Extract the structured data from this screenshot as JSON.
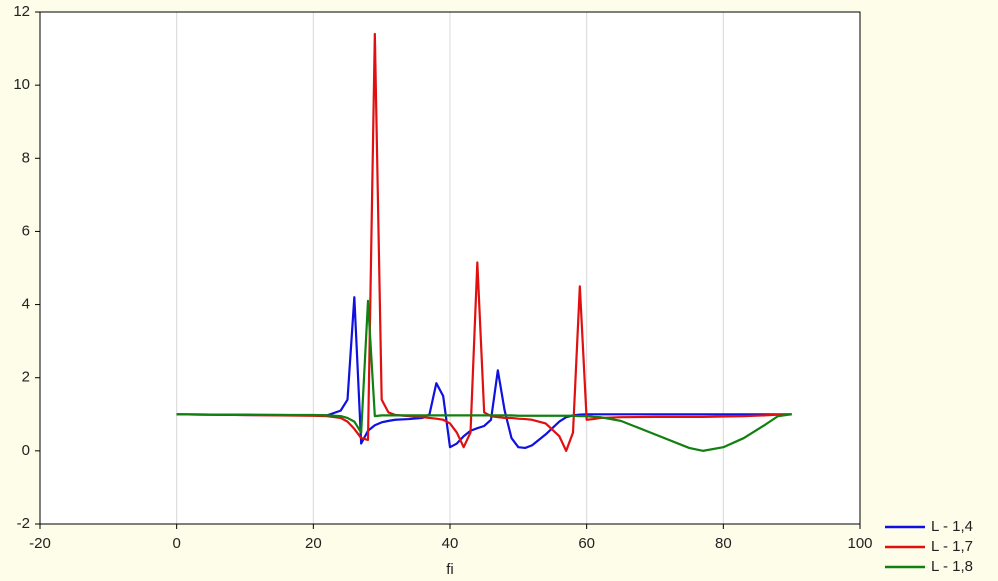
{
  "chart_data": {
    "type": "line",
    "x_label": "fi",
    "x": [
      0,
      5,
      10,
      15,
      20,
      22,
      24,
      25,
      26,
      27,
      28,
      29,
      30,
      31,
      32,
      34,
      36,
      37,
      38,
      39,
      40,
      41,
      42,
      43,
      44,
      45,
      46,
      47,
      48,
      49,
      50,
      51,
      52,
      54,
      56,
      57,
      58,
      59,
      60,
      61,
      62,
      65,
      70,
      75,
      77,
      80,
      83,
      86,
      88,
      90
    ],
    "series": [
      {
        "name": "L - 1,4",
        "color": "#1010e0",
        "values": [
          1,
          0.99,
          0.98,
          0.98,
          0.97,
          0.97,
          1.1,
          1.4,
          4.2,
          0.2,
          0.55,
          0.7,
          0.78,
          0.82,
          0.85,
          0.87,
          0.9,
          1.0,
          1.85,
          1.5,
          0.1,
          0.2,
          0.4,
          0.55,
          0.62,
          0.68,
          0.85,
          2.2,
          1.1,
          0.35,
          0.1,
          0.08,
          0.15,
          0.45,
          0.8,
          0.92,
          0.97,
          0.99,
          1,
          1,
          1,
          1,
          1,
          1,
          1,
          1,
          1,
          1,
          1,
          1
        ]
      },
      {
        "name": "L - 1,7",
        "color": "#e01010",
        "values": [
          1,
          0.99,
          0.98,
          0.97,
          0.96,
          0.95,
          0.9,
          0.8,
          0.6,
          0.35,
          0.3,
          11.4,
          1.4,
          1.05,
          0.98,
          0.95,
          0.92,
          0.9,
          0.88,
          0.85,
          0.75,
          0.5,
          0.1,
          0.5,
          5.15,
          1.05,
          0.95,
          0.92,
          0.9,
          0.9,
          0.88,
          0.87,
          0.85,
          0.75,
          0.4,
          0,
          0.5,
          4.5,
          0.85,
          0.87,
          0.9,
          0.92,
          0.93,
          0.93,
          0.93,
          0.94,
          0.95,
          0.97,
          0.99,
          1
        ]
      },
      {
        "name": "L - 1,8",
        "color": "#108010",
        "values": [
          1,
          0.99,
          0.99,
          0.98,
          0.98,
          0.97,
          0.95,
          0.9,
          0.8,
          0.5,
          4.1,
          0.95,
          0.97,
          0.97,
          0.97,
          0.97,
          0.97,
          0.97,
          0.97,
          0.97,
          0.97,
          0.97,
          0.97,
          0.97,
          0.97,
          0.97,
          0.97,
          0.97,
          0.97,
          0.97,
          0.96,
          0.96,
          0.96,
          0.96,
          0.96,
          0.96,
          0.96,
          0.95,
          0.95,
          0.93,
          0.92,
          0.82,
          0.45,
          0.08,
          0,
          0.1,
          0.35,
          0.7,
          0.95,
          1
        ]
      }
    ],
    "xlim": [
      -20,
      100
    ],
    "xticks": [
      -20,
      0,
      20,
      40,
      60,
      80,
      100
    ],
    "ylim": [
      -2,
      12
    ],
    "yticks": [
      -2,
      0,
      2,
      4,
      6,
      8,
      10,
      12
    ],
    "grid": "x",
    "legend": "bottom-right"
  }
}
